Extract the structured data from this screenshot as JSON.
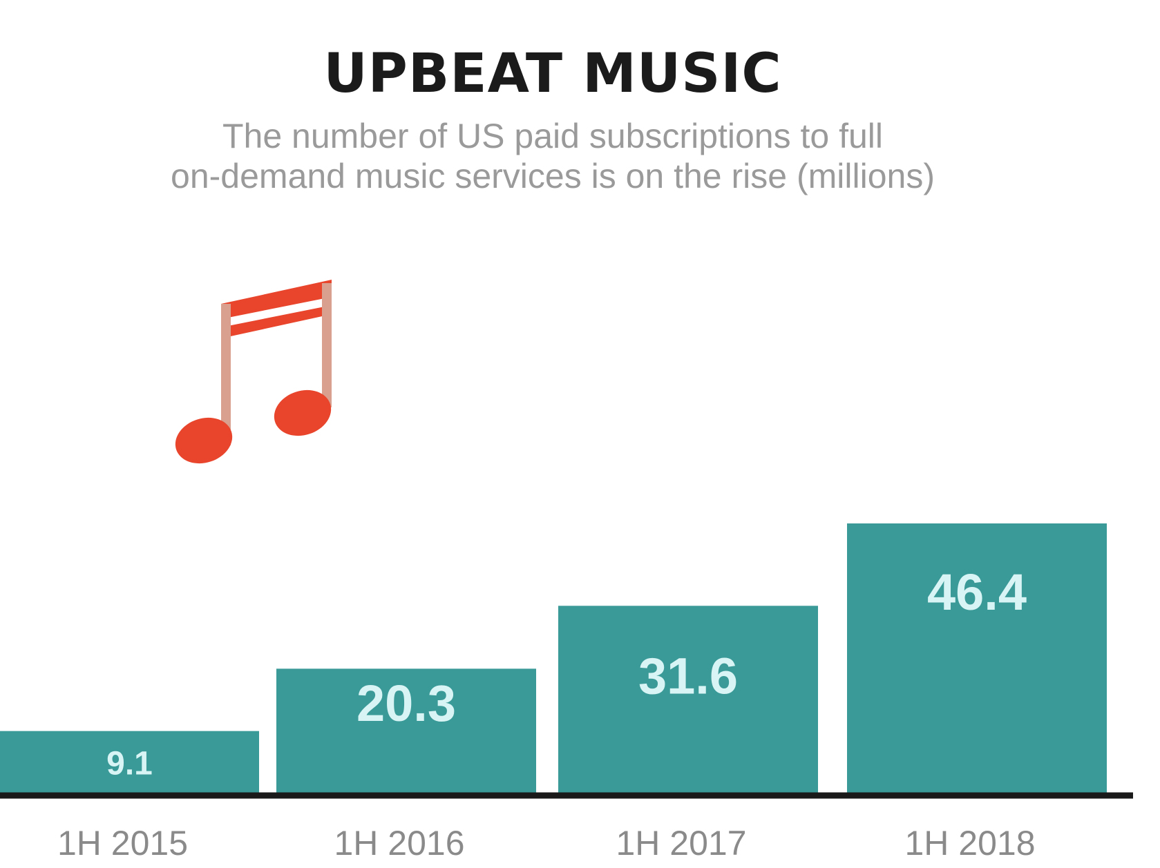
{
  "chart_data": {
    "type": "bar",
    "title": "UPBEAT MUSIC",
    "subtitle_lines": [
      "The number of US paid subscriptions to full",
      "on-demand music services is on the rise (millions)"
    ],
    "categories": [
      "1H 2015",
      "1H 2016",
      "1H 2017",
      "1H 2018"
    ],
    "values": [
      9.1,
      20.3,
      31.6,
      46.4
    ],
    "value_labels": [
      "9.1",
      "20.3",
      "31.6",
      "46.4"
    ],
    "ylim": [
      0,
      48
    ],
    "xlabel": "",
    "ylabel": "",
    "grid": false,
    "legend": "none"
  },
  "colors": {
    "bar": "#3a9a98",
    "bar_label": "#d9f4f4",
    "baseline": "#1a1a1a",
    "tick_label": "#8a8a8a",
    "note": "#e8452c"
  },
  "icons": {
    "decoration": "music-note-icon"
  }
}
